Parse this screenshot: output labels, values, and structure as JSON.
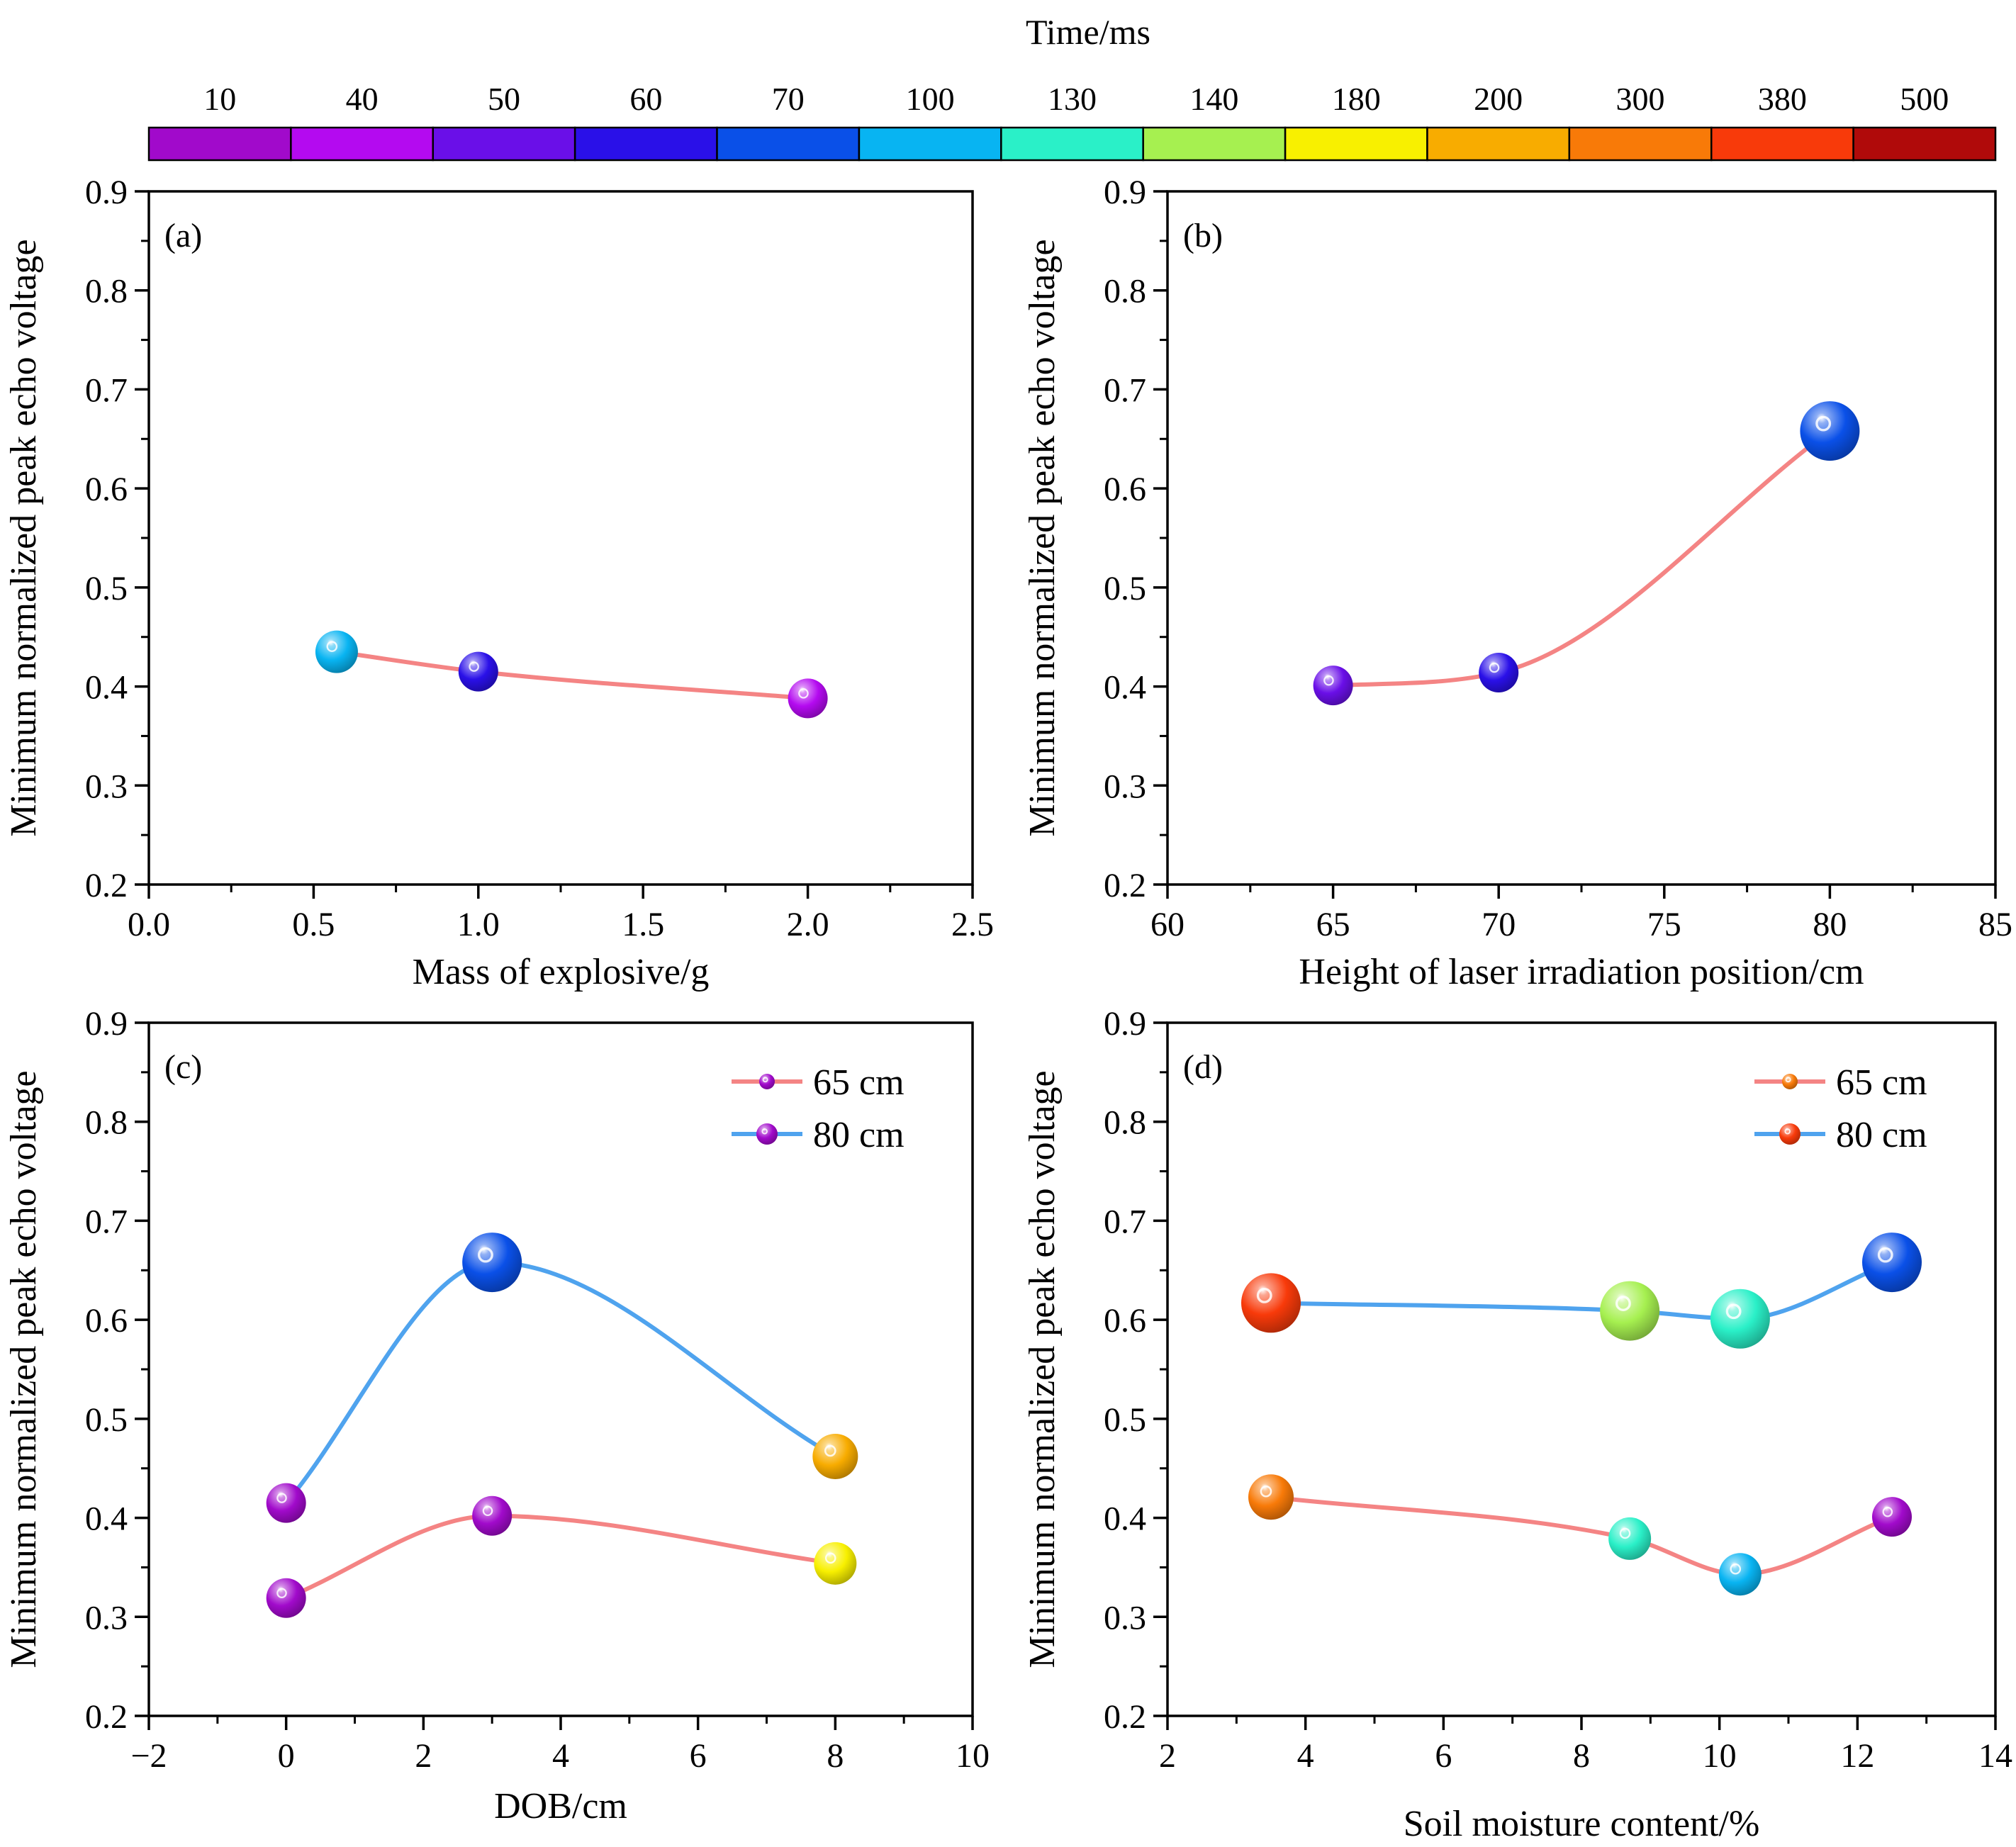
{
  "colorbar": {
    "title": "Time/ms",
    "stops": [
      {
        "label": "10",
        "color": "#A10ACB"
      },
      {
        "label": "40",
        "color": "#B40AF0"
      },
      {
        "label": "50",
        "color": "#6A0FE8"
      },
      {
        "label": "60",
        "color": "#2A10E8"
      },
      {
        "label": "70",
        "color": "#0A50E8"
      },
      {
        "label": "100",
        "color": "#08B4F2"
      },
      {
        "label": "130",
        "color": "#2AF0C8"
      },
      {
        "label": "140",
        "color": "#A6F050"
      },
      {
        "label": "180",
        "color": "#F8F000"
      },
      {
        "label": "200",
        "color": "#F8AC00"
      },
      {
        "label": "300",
        "color": "#F87A08"
      },
      {
        "label": "380",
        "color": "#F83A0A"
      },
      {
        "label": "500",
        "color": "#B00A0A"
      }
    ]
  },
  "chart_data": [
    {
      "type": "line",
      "panel": "(a)",
      "xlabel": "Mass of explosive/g",
      "ylabel": "Minimum normalized peak echo voltage",
      "xlim": [
        0.0,
        2.5
      ],
      "ylim": [
        0.2,
        0.9
      ],
      "xticks": [
        "0.0",
        "0.5",
        "1.0",
        "1.5",
        "2.0",
        "2.5"
      ],
      "yticks": [
        "0.2",
        "0.3",
        "0.4",
        "0.5",
        "0.6",
        "0.7",
        "0.8",
        "0.9"
      ],
      "legend": [],
      "series": [
        {
          "name": "",
          "line_color": "#F48484",
          "x": [
            0.57,
            1.0,
            2.0
          ],
          "y": [
            0.435,
            0.415,
            0.388
          ],
          "time_ms": [
            "100",
            "60",
            "40"
          ]
        }
      ]
    },
    {
      "type": "line",
      "panel": "(b)",
      "xlabel": "Height of laser irradiation position/cm",
      "ylabel": "Minimum normalized peak echo voltage",
      "xlim": [
        60,
        85
      ],
      "ylim": [
        0.2,
        0.9
      ],
      "xticks": [
        "60",
        "65",
        "70",
        "75",
        "80",
        "85"
      ],
      "yticks": [
        "0.2",
        "0.3",
        "0.4",
        "0.5",
        "0.6",
        "0.7",
        "0.8",
        "0.9"
      ],
      "legend": [],
      "series": [
        {
          "name": "",
          "line_color": "#F48484",
          "x": [
            65,
            70,
            80
          ],
          "y": [
            0.401,
            0.414,
            0.658
          ],
          "time_ms": [
            "50",
            "60",
            "70"
          ]
        }
      ]
    },
    {
      "type": "line",
      "panel": "(c)",
      "xlabel": "DOB/cm",
      "ylabel": "Minimum normalized peak echo voltage",
      "xlim": [
        -2,
        10
      ],
      "ylim": [
        0.2,
        0.9
      ],
      "xticks": [
        "−2",
        "0",
        "2",
        "4",
        "6",
        "8",
        "10"
      ],
      "yticks": [
        "0.2",
        "0.3",
        "0.4",
        "0.5",
        "0.6",
        "0.7",
        "0.8",
        "0.9"
      ],
      "legend": [
        "65 cm",
        "80 cm"
      ],
      "series": [
        {
          "name": "65 cm",
          "line_color": "#F48484",
          "x": [
            0,
            3,
            8
          ],
          "y": [
            0.319,
            0.402,
            0.354
          ],
          "time_ms": [
            "10",
            "10",
            "180"
          ]
        },
        {
          "name": "80 cm",
          "line_color": "#4FA3EE",
          "x": [
            0,
            3,
            8
          ],
          "y": [
            0.415,
            0.658,
            0.462
          ],
          "time_ms": [
            "10",
            "70",
            "200"
          ]
        }
      ]
    },
    {
      "type": "line",
      "panel": "(d)",
      "xlabel": "Soil moisture content/%",
      "ylabel": "Minimum normalized peak echo voltage",
      "xlim": [
        2,
        14
      ],
      "ylim": [
        0.2,
        0.9
      ],
      "xticks": [
        "2",
        "4",
        "6",
        "8",
        "10",
        "12",
        "14"
      ],
      "yticks": [
        "0.2",
        "0.3",
        "0.4",
        "0.5",
        "0.6",
        "0.7",
        "0.8",
        "0.9"
      ],
      "legend": [
        "65 cm",
        "80 cm"
      ],
      "series": [
        {
          "name": "65 cm",
          "line_color": "#F48484",
          "x": [
            3.5,
            8.7,
            10.3,
            12.5
          ],
          "y": [
            0.421,
            0.379,
            0.343,
            0.401
          ],
          "time_ms": [
            "300",
            "130",
            "100",
            "10"
          ]
        },
        {
          "name": "80 cm",
          "line_color": "#4FA3EE",
          "x": [
            3.5,
            8.7,
            10.3,
            12.5
          ],
          "y": [
            0.617,
            0.609,
            0.601,
            0.658
          ],
          "time_ms": [
            "380",
            "140",
            "130",
            "70"
          ]
        }
      ]
    }
  ]
}
